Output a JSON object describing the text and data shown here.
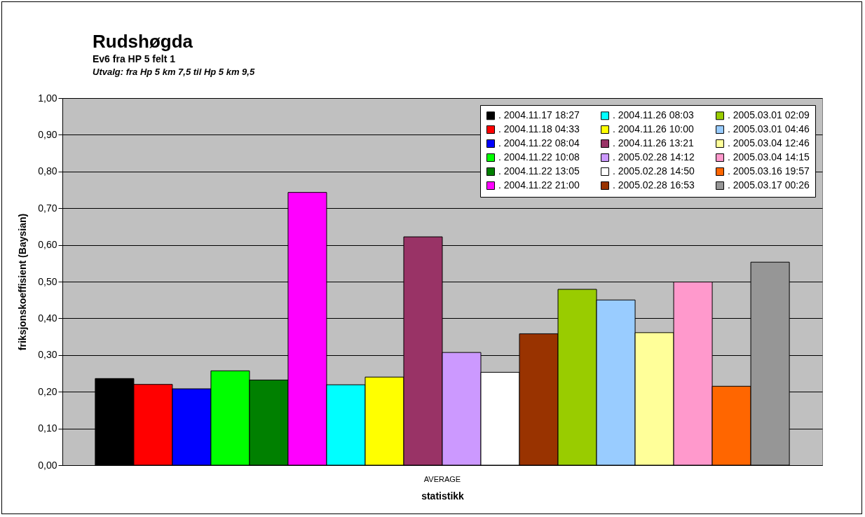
{
  "chart_data": {
    "type": "bar",
    "title": "Rudshøgda",
    "subtitle": "Ev6 fra HP 5 felt 1",
    "annotations": [
      "Utvalg: fra Hp 5 km 7,5 til Hp 5 km 9,5"
    ],
    "xlabel": "statistikk",
    "ylabel": "friksjonskoeffisient (Baysian)",
    "categories": [
      "AVERAGE"
    ],
    "series": [
      {
        "name": ". 2004.11.17 18:27",
        "color": "#000000",
        "values": [
          0.236
        ]
      },
      {
        "name": ". 2004.11.18 04:33",
        "color": "#ff0000",
        "values": [
          0.22
        ]
      },
      {
        "name": ". 2004.11.22 08:04",
        "color": "#0000ff",
        "values": [
          0.208
        ]
      },
      {
        "name": ". 2004.11.22 10:08",
        "color": "#00ff00",
        "values": [
          0.257
        ]
      },
      {
        "name": ". 2004.11.22 13:05",
        "color": "#008000",
        "values": [
          0.232
        ]
      },
      {
        "name": ". 2004.11.22 21:00",
        "color": "#ff00ff",
        "values": [
          0.743
        ]
      },
      {
        "name": ". 2004.11.26 08:03",
        "color": "#00ffff",
        "values": [
          0.219
        ]
      },
      {
        "name": ". 2004.11.26 10:00",
        "color": "#ffff00",
        "values": [
          0.24
        ]
      },
      {
        "name": ". 2004.11.26 13:21",
        "color": "#993366",
        "values": [
          0.622
        ]
      },
      {
        "name": ". 2005.02.28 14:12",
        "color": "#cc99ff",
        "values": [
          0.307
        ]
      },
      {
        "name": ". 2005.02.28 14:50",
        "color": "#ffffff",
        "values": [
          0.253
        ]
      },
      {
        "name": ". 2005.02.28 16:53",
        "color": "#993300",
        "values": [
          0.358
        ]
      },
      {
        "name": ". 2005.03.01 02:09",
        "color": "#99cc00",
        "values": [
          0.479
        ]
      },
      {
        "name": ". 2005.03.01 04:46",
        "color": "#99ccff",
        "values": [
          0.45
        ]
      },
      {
        "name": ". 2005.03.04 12:46",
        "color": "#ffff99",
        "values": [
          0.361
        ]
      },
      {
        "name": ". 2005.03.04 14:15",
        "color": "#ff99cc",
        "values": [
          0.499
        ]
      },
      {
        "name": ". 2005.03.16 19:57",
        "color": "#ff6600",
        "values": [
          0.215
        ]
      },
      {
        "name": ". 2005.03.17 00:26",
        "color": "#969696",
        "values": [
          0.553
        ]
      }
    ],
    "ylim": [
      0,
      1
    ],
    "yticks": [
      {
        "value": 0,
        "label": "0,00"
      },
      {
        "value": 0.1,
        "label": "0,10"
      },
      {
        "value": 0.2,
        "label": "0,20"
      },
      {
        "value": 0.3,
        "label": "0,30"
      },
      {
        "value": 0.4,
        "label": "0,40"
      },
      {
        "value": 0.5,
        "label": "0,50"
      },
      {
        "value": 0.6,
        "label": "0,60"
      },
      {
        "value": 0.7,
        "label": "0,70"
      },
      {
        "value": 0.8,
        "label": "0,80"
      },
      {
        "value": 0.9,
        "label": "0,90"
      },
      {
        "value": 1,
        "label": "1,00"
      }
    ],
    "grid": "y",
    "legend": "top right"
  }
}
